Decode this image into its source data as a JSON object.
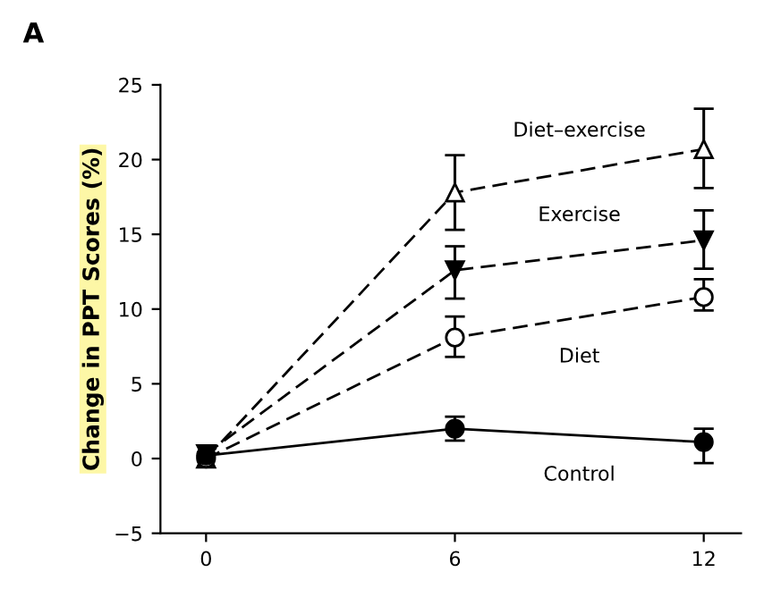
{
  "chart_data": {
    "type": "line",
    "title": "A",
    "ylabel": "Change in PPT Scores (%)",
    "x": [
      0,
      6,
      12
    ],
    "xlim": [
      -1.1,
      12.9
    ],
    "ylim": [
      -5,
      25
    ],
    "xticks": [
      0,
      6,
      12
    ],
    "yticks": [
      -5,
      0,
      5,
      10,
      15,
      20,
      25
    ],
    "series": [
      {
        "name": "Diet–exercise",
        "color": "#000000",
        "colors": [
          "#ffffff",
          "#ffffff",
          "#ffffff"
        ],
        "values": [
          0,
          17.8,
          20.7
        ],
        "errors": [
          null,
          [
            15.3,
            20.3
          ],
          [
            18.1,
            23.4
          ]
        ],
        "marker": "triangle",
        "line_style": "dashed"
      },
      {
        "name": "Exercise",
        "color": "#000000",
        "colors": [
          "#000000",
          "#000000",
          "#000000"
        ],
        "values": [
          0.3,
          12.6,
          14.6
        ],
        "errors": [
          null,
          [
            10.7,
            14.2
          ],
          [
            12.7,
            16.6
          ]
        ],
        "marker": "triangle_down",
        "line_style": "dashed"
      },
      {
        "name": "Diet",
        "color": "#000000",
        "colors": [
          "#ffffff",
          "#ffffff",
          "#ffffff"
        ],
        "values": [
          0,
          8.1,
          10.8
        ],
        "errors": [
          null,
          [
            6.8,
            9.5
          ],
          [
            9.9,
            12.0
          ]
        ],
        "marker": "circle",
        "line_style": "dashed"
      },
      {
        "name": "Control",
        "color": "#000000",
        "colors": [
          "#000000",
          "#000000",
          "#000000"
        ],
        "values": [
          0.2,
          2.0,
          1.1
        ],
        "errors": [
          null,
          [
            1.2,
            2.8
          ],
          [
            -0.3,
            2.0
          ]
        ],
        "marker": "circle",
        "line_style": "solid"
      }
    ]
  }
}
